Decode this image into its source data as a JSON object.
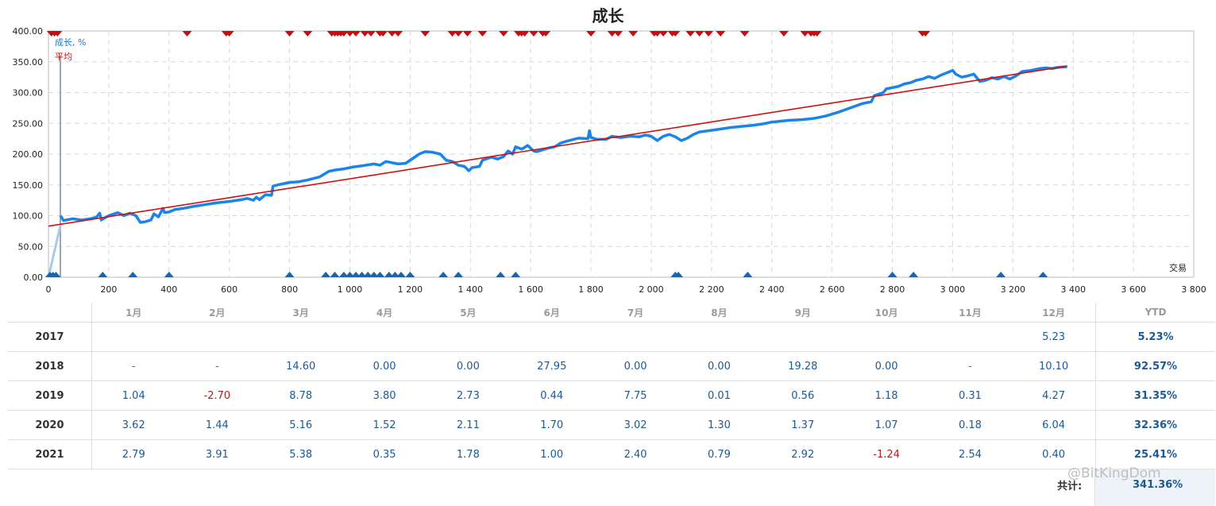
{
  "chart_data": {
    "type": "line",
    "title": "成长",
    "xlabel": "交易",
    "ylabel": "",
    "xlim": [
      0,
      3800
    ],
    "ylim": [
      0,
      400
    ],
    "grid": true,
    "legend_position": "top-left",
    "x_ticks": [
      "0",
      "200",
      "400",
      "600",
      "800",
      "1 000",
      "1 200",
      "1 400",
      "1 600",
      "1 800",
      "2 000",
      "2 200",
      "2 400",
      "2 600",
      "2 800",
      "3 000",
      "3 200",
      "3 400",
      "3 600",
      "3 800"
    ],
    "y_ticks": [
      "0.00",
      "50.00",
      "100.00",
      "150.00",
      "200.00",
      "250.00",
      "300.00",
      "350.00",
      "400.00"
    ],
    "series": [
      {
        "name": "成长, %",
        "color": "#1a84e8",
        "points": [
          [
            0,
            0
          ],
          [
            40,
            85
          ],
          [
            40,
            100
          ],
          [
            50,
            92
          ],
          [
            80,
            95
          ],
          [
            110,
            93
          ],
          [
            140,
            95
          ],
          [
            155,
            97
          ],
          [
            160,
            98
          ],
          [
            170,
            104
          ],
          [
            175,
            93
          ],
          [
            200,
            100
          ],
          [
            230,
            105
          ],
          [
            250,
            100
          ],
          [
            270,
            104
          ],
          [
            290,
            100
          ],
          [
            305,
            89
          ],
          [
            320,
            90
          ],
          [
            340,
            93
          ],
          [
            350,
            103
          ],
          [
            365,
            98
          ],
          [
            380,
            112
          ],
          [
            385,
            105
          ],
          [
            400,
            106
          ],
          [
            420,
            110
          ],
          [
            450,
            112
          ],
          [
            480,
            115
          ],
          [
            520,
            118
          ],
          [
            560,
            121
          ],
          [
            600,
            123
          ],
          [
            640,
            126
          ],
          [
            660,
            128
          ],
          [
            680,
            125
          ],
          [
            690,
            130
          ],
          [
            700,
            126
          ],
          [
            720,
            134
          ],
          [
            740,
            133
          ],
          [
            745,
            148
          ],
          [
            770,
            151
          ],
          [
            800,
            154
          ],
          [
            830,
            155
          ],
          [
            860,
            158
          ],
          [
            900,
            163
          ],
          [
            910,
            166
          ],
          [
            930,
            172
          ],
          [
            950,
            174
          ],
          [
            980,
            176
          ],
          [
            1010,
            179
          ],
          [
            1040,
            181
          ],
          [
            1080,
            184
          ],
          [
            1100,
            182
          ],
          [
            1120,
            188
          ],
          [
            1160,
            184
          ],
          [
            1185,
            185
          ],
          [
            1200,
            190
          ],
          [
            1230,
            200
          ],
          [
            1250,
            204
          ],
          [
            1275,
            203
          ],
          [
            1300,
            200
          ],
          [
            1320,
            190
          ],
          [
            1340,
            188
          ],
          [
            1360,
            182
          ],
          [
            1380,
            180
          ],
          [
            1395,
            173
          ],
          [
            1405,
            178
          ],
          [
            1430,
            180
          ],
          [
            1440,
            190
          ],
          [
            1470,
            195
          ],
          [
            1490,
            192
          ],
          [
            1510,
            196
          ],
          [
            1525,
            205
          ],
          [
            1540,
            200
          ],
          [
            1550,
            212
          ],
          [
            1570,
            208
          ],
          [
            1590,
            214
          ],
          [
            1610,
            205
          ],
          [
            1620,
            204
          ],
          [
            1640,
            207
          ],
          [
            1660,
            210
          ],
          [
            1680,
            212
          ],
          [
            1700,
            218
          ],
          [
            1720,
            221
          ],
          [
            1760,
            226
          ],
          [
            1790,
            225
          ],
          [
            1795,
            238
          ],
          [
            1800,
            227
          ],
          [
            1820,
            224
          ],
          [
            1850,
            224
          ],
          [
            1870,
            229
          ],
          [
            1880,
            228
          ],
          [
            1900,
            227
          ],
          [
            1930,
            229
          ],
          [
            1960,
            228
          ],
          [
            1980,
            231
          ],
          [
            2000,
            229
          ],
          [
            2020,
            222
          ],
          [
            2040,
            229
          ],
          [
            2060,
            232
          ],
          [
            2080,
            228
          ],
          [
            2100,
            222
          ],
          [
            2120,
            226
          ],
          [
            2140,
            232
          ],
          [
            2160,
            236
          ],
          [
            2190,
            238
          ],
          [
            2220,
            240
          ],
          [
            2260,
            243
          ],
          [
            2300,
            245
          ],
          [
            2340,
            247
          ],
          [
            2370,
            249
          ],
          [
            2400,
            252
          ],
          [
            2440,
            254
          ],
          [
            2460,
            255
          ],
          [
            2500,
            256
          ],
          [
            2540,
            258
          ],
          [
            2580,
            262
          ],
          [
            2620,
            268
          ],
          [
            2660,
            275
          ],
          [
            2700,
            282
          ],
          [
            2730,
            285
          ],
          [
            2740,
            295
          ],
          [
            2770,
            300
          ],
          [
            2780,
            306
          ],
          [
            2800,
            308
          ],
          [
            2820,
            310
          ],
          [
            2840,
            314
          ],
          [
            2860,
            316
          ],
          [
            2880,
            320
          ],
          [
            2900,
            322
          ],
          [
            2920,
            326
          ],
          [
            2940,
            323
          ],
          [
            2960,
            328
          ],
          [
            2980,
            332
          ],
          [
            3000,
            336
          ],
          [
            3010,
            330
          ],
          [
            3030,
            325
          ],
          [
            3050,
            327
          ],
          [
            3070,
            330
          ],
          [
            3080,
            324
          ],
          [
            3090,
            318
          ],
          [
            3110,
            320
          ],
          [
            3130,
            324
          ],
          [
            3150,
            322
          ],
          [
            3170,
            326
          ],
          [
            3190,
            322
          ],
          [
            3210,
            327
          ],
          [
            3230,
            334
          ],
          [
            3260,
            336
          ],
          [
            3290,
            339
          ],
          [
            3310,
            340
          ],
          [
            3330,
            339
          ],
          [
            3350,
            341
          ],
          [
            3380,
            342
          ]
        ]
      },
      {
        "name": "平均",
        "color": "#d21010",
        "points": [
          [
            0,
            83
          ],
          [
            3380,
            343
          ]
        ]
      }
    ],
    "top_markers_x": [
      10,
      20,
      30,
      460,
      590,
      600,
      800,
      860,
      940,
      950,
      960,
      970,
      980,
      1000,
      1020,
      1050,
      1070,
      1100,
      1110,
      1140,
      1160,
      1250,
      1340,
      1360,
      1390,
      1440,
      1510,
      1560,
      1570,
      1580,
      1610,
      1640,
      1650,
      1800,
      1870,
      1890,
      1940,
      2010,
      2020,
      2040,
      2070,
      2080,
      2130,
      2160,
      2190,
      2230,
      2310,
      2440,
      2510,
      2530,
      2540,
      2550,
      2900,
      2910
    ],
    "bottom_markers_x": [
      5,
      15,
      25,
      180,
      280,
      400,
      800,
      920,
      950,
      980,
      1000,
      1020,
      1040,
      1060,
      1080,
      1100,
      1130,
      1150,
      1170,
      1200,
      1310,
      1360,
      1500,
      1550,
      2080,
      2090,
      2320,
      2800,
      2870,
      3160,
      3300
    ]
  },
  "table": {
    "months": [
      "1月",
      "2月",
      "3月",
      "4月",
      "5月",
      "6月",
      "7月",
      "8月",
      "9月",
      "10月",
      "11月",
      "12月"
    ],
    "ytd_header": "YTD",
    "rows": [
      {
        "year": "2017",
        "values": [
          "",
          "",
          "",
          "",
          "",
          "",
          "",
          "",
          "",
          "",
          "",
          "5.23"
        ],
        "ytd": "5.23%"
      },
      {
        "year": "2018",
        "values": [
          "-",
          "-",
          "14.60",
          "0.00",
          "0.00",
          "27.95",
          "0.00",
          "0.00",
          "19.28",
          "0.00",
          "-",
          "10.10"
        ],
        "ytd": "92.57%"
      },
      {
        "year": "2019",
        "values": [
          "1.04",
          "-2.70",
          "8.78",
          "3.80",
          "2.73",
          "0.44",
          "7.75",
          "0.01",
          "0.56",
          "1.18",
          "0.31",
          "4.27"
        ],
        "ytd": "31.35%"
      },
      {
        "year": "2020",
        "values": [
          "3.62",
          "1.44",
          "5.16",
          "1.52",
          "2.11",
          "1.70",
          "3.02",
          "1.30",
          "1.37",
          "1.07",
          "0.18",
          "6.04"
        ],
        "ytd": "32.36%"
      },
      {
        "year": "2021",
        "values": [
          "2.79",
          "3.91",
          "5.38",
          "0.35",
          "1.78",
          "1.00",
          "2.40",
          "0.79",
          "2.92",
          "-1.24",
          "2.54",
          "0.40"
        ],
        "ytd": "25.41%"
      }
    ],
    "total_label": "共计:",
    "total_value": "341.36%"
  },
  "watermark": "@BitKingDom"
}
